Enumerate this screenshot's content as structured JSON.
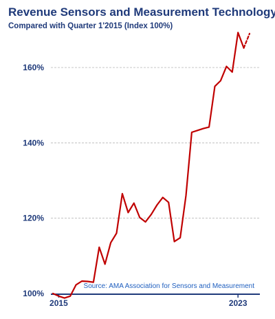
{
  "chart_data": {
    "type": "line",
    "title": "Revenue Sensors and Measurement Technology",
    "subtitle": "Compared with Quarter 1'2015 (Index 100%)",
    "xlabel": "",
    "ylabel": "",
    "ylim": [
      100,
      170
    ],
    "yticks": [
      100,
      120,
      140,
      160
    ],
    "ytick_labels": [
      "100%",
      "120%",
      "140%",
      "160%"
    ],
    "xtick_labels": [
      "2015",
      "2023"
    ],
    "grid": true,
    "source": "Source: AMA Association  for Sensors and Measurement",
    "line_color": "#c00000",
    "series": [
      {
        "style": "solid",
        "values": [
          100.0,
          99.3,
          98.8,
          99.3,
          102.3,
          103.3,
          103.2,
          103.0,
          112.3,
          107.8,
          113.5,
          116.0,
          126.5,
          121.5,
          124.0,
          120.2,
          119.0,
          121.0,
          123.5,
          125.5,
          124.2,
          113.8,
          114.8,
          126.0,
          142.8,
          143.3,
          143.8,
          144.2,
          155.0,
          156.5,
          160.3,
          158.8,
          169.3,
          165.2
        ]
      },
      {
        "style": "dashed",
        "start_index": 33,
        "values": [
          165.2,
          169.0
        ]
      }
    ]
  }
}
